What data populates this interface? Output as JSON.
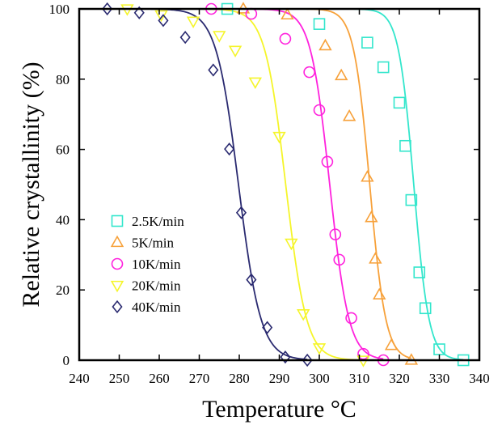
{
  "chart_data": {
    "type": "scatter",
    "xlabel": "Temperature °C",
    "ylabel": "Relative crystallinity (%)",
    "xlim": [
      240,
      340
    ],
    "ylim": [
      0,
      100
    ],
    "xticks": [
      240,
      250,
      260,
      270,
      280,
      290,
      300,
      310,
      320,
      330,
      340
    ],
    "yticks": [
      0,
      20,
      40,
      60,
      80,
      100
    ],
    "grid": false,
    "legend_position": "left-lower",
    "series": [
      {
        "name": "2.5K/min",
        "marker": "square",
        "color": "#33e6cc",
        "x": [
          277,
          300,
          312,
          316,
          320,
          321.5,
          323,
          325,
          326.5,
          330,
          336
        ],
        "y": [
          100,
          95.7,
          90.4,
          83.4,
          73.3,
          61,
          45.6,
          25,
          14.8,
          3.1,
          0
        ],
        "curve": {
          "t50": 323.6,
          "width": 1.9
        }
      },
      {
        "name": "5K/min",
        "marker": "triangle-up",
        "color": "#f7a13a",
        "x": [
          281,
          292,
          301.5,
          305.5,
          307.5,
          312,
          313,
          314,
          315,
          318,
          323
        ],
        "y": [
          100,
          98.3,
          89.5,
          81,
          69.4,
          52.1,
          40.6,
          28.8,
          18.6,
          4.2,
          0
        ],
        "curve": {
          "t50": 312.6,
          "width": 2.0
        }
      },
      {
        "name": "10K/min",
        "marker": "circle",
        "color": "#ff22dd",
        "x": [
          273,
          283,
          291.5,
          297.5,
          300,
          302,
          304,
          305,
          308,
          311,
          316
        ],
        "y": [
          100,
          98.6,
          91.5,
          82,
          71.2,
          56.5,
          35.8,
          28.6,
          12,
          1.8,
          0
        ],
        "curve": {
          "t50": 302.6,
          "width": 2.4
        }
      },
      {
        "name": "20K/min",
        "marker": "triangle-down",
        "color": "#f5f52a",
        "x": [
          252,
          260.5,
          268.5,
          275,
          279,
          284,
          290,
          293,
          296,
          300,
          311
        ],
        "y": [
          100,
          98.3,
          96.5,
          92.4,
          88.2,
          79.2,
          63.7,
          33.3,
          13.2,
          3.5,
          0
        ],
        "curve": {
          "t50": 291.6,
          "width": 2.6
        }
      },
      {
        "name": "40K/min",
        "marker": "diamond",
        "color": "#2a2a70",
        "x": [
          247,
          255,
          261,
          266.5,
          273.5,
          277.5,
          280.5,
          283,
          287,
          291.5,
          297
        ],
        "y": [
          100,
          98.9,
          96.7,
          91.9,
          82.6,
          60.1,
          42,
          22.9,
          9.3,
          0.9,
          0
        ],
        "curve": {
          "t50": 279.8,
          "width": 2.8
        }
      }
    ]
  }
}
